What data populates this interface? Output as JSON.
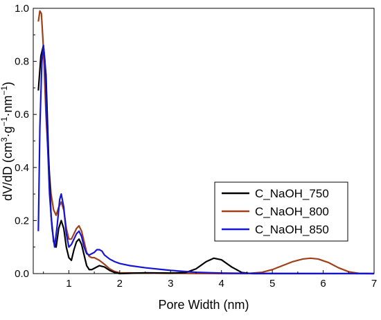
{
  "chart_data": {
    "type": "line",
    "xlabel": "Pore Width (nm)",
    "ylabel_parts": [
      "dV/dD (cm",
      "3",
      "·g",
      "−1",
      "·nm",
      "−1",
      ")"
    ],
    "xlim": [
      0.3,
      7
    ],
    "ylim": [
      0,
      1.0
    ],
    "xticks": [
      1,
      2,
      3,
      4,
      5,
      6,
      7
    ],
    "xtick_labels": [
      "1",
      "2",
      "3",
      "4",
      "5",
      "6",
      "7"
    ],
    "yticks": [
      0,
      0.2,
      0.4,
      0.6,
      0.8,
      1.0
    ],
    "ytick_labels": [
      "0.0",
      "0.2",
      "0.4",
      "0.6",
      "0.8",
      "1.0"
    ],
    "legend_position": "center-right",
    "series": [
      {
        "name": "C_NaOH_750",
        "color": "#000000",
        "points": [
          [
            0.4,
            0.69
          ],
          [
            0.45,
            0.82
          ],
          [
            0.5,
            0.86
          ],
          [
            0.55,
            0.75
          ],
          [
            0.6,
            0.45
          ],
          [
            0.65,
            0.22
          ],
          [
            0.7,
            0.12
          ],
          [
            0.75,
            0.1
          ],
          [
            0.8,
            0.17
          ],
          [
            0.85,
            0.2
          ],
          [
            0.9,
            0.17
          ],
          [
            0.95,
            0.1
          ],
          [
            1.0,
            0.06
          ],
          [
            1.05,
            0.05
          ],
          [
            1.1,
            0.09
          ],
          [
            1.15,
            0.12
          ],
          [
            1.2,
            0.13
          ],
          [
            1.25,
            0.11
          ],
          [
            1.3,
            0.07
          ],
          [
            1.35,
            0.03
          ],
          [
            1.4,
            0.015
          ],
          [
            1.45,
            0.015
          ],
          [
            1.5,
            0.02
          ],
          [
            1.6,
            0.03
          ],
          [
            1.7,
            0.025
          ],
          [
            1.8,
            0.012
          ],
          [
            1.9,
            0.004
          ],
          [
            2.0,
            0.0
          ],
          [
            2.5,
            0.003
          ],
          [
            3.0,
            0.002
          ],
          [
            3.3,
            0.004
          ],
          [
            3.5,
            0.018
          ],
          [
            3.7,
            0.045
          ],
          [
            3.85,
            0.058
          ],
          [
            4.0,
            0.052
          ],
          [
            4.2,
            0.025
          ],
          [
            4.4,
            0.004
          ],
          [
            4.6,
            0.0
          ],
          [
            5.0,
            0.0
          ],
          [
            7.0,
            0.0
          ]
        ]
      },
      {
        "name": "C_NaOH_800",
        "color": "#a0401a",
        "points": [
          [
            0.4,
            0.95
          ],
          [
            0.43,
            0.99
          ],
          [
            0.46,
            0.98
          ],
          [
            0.5,
            0.85
          ],
          [
            0.55,
            0.6
          ],
          [
            0.6,
            0.42
          ],
          [
            0.65,
            0.3
          ],
          [
            0.7,
            0.24
          ],
          [
            0.75,
            0.22
          ],
          [
            0.8,
            0.25
          ],
          [
            0.85,
            0.27
          ],
          [
            0.9,
            0.24
          ],
          [
            0.95,
            0.17
          ],
          [
            1.0,
            0.13
          ],
          [
            1.05,
            0.13
          ],
          [
            1.1,
            0.15
          ],
          [
            1.15,
            0.17
          ],
          [
            1.2,
            0.18
          ],
          [
            1.25,
            0.16
          ],
          [
            1.3,
            0.12
          ],
          [
            1.35,
            0.08
          ],
          [
            1.4,
            0.065
          ],
          [
            1.45,
            0.06
          ],
          [
            1.5,
            0.06
          ],
          [
            1.6,
            0.05
          ],
          [
            1.7,
            0.035
          ],
          [
            1.8,
            0.018
          ],
          [
            1.9,
            0.008
          ],
          [
            2.0,
            0.003
          ],
          [
            2.5,
            0.002
          ],
          [
            3.0,
            0.001
          ],
          [
            4.0,
            0.0
          ],
          [
            4.5,
            0.0
          ],
          [
            4.8,
            0.005
          ],
          [
            5.0,
            0.015
          ],
          [
            5.2,
            0.03
          ],
          [
            5.4,
            0.045
          ],
          [
            5.6,
            0.055
          ],
          [
            5.75,
            0.058
          ],
          [
            5.9,
            0.055
          ],
          [
            6.1,
            0.042
          ],
          [
            6.3,
            0.022
          ],
          [
            6.5,
            0.007
          ],
          [
            6.7,
            0.001
          ],
          [
            7.0,
            0.0
          ]
        ]
      },
      {
        "name": "C_NaOH_850",
        "color": "#1515d4",
        "points": [
          [
            0.4,
            0.16
          ],
          [
            0.43,
            0.55
          ],
          [
            0.47,
            0.8
          ],
          [
            0.5,
            0.86
          ],
          [
            0.53,
            0.8
          ],
          [
            0.57,
            0.55
          ],
          [
            0.62,
            0.3
          ],
          [
            0.67,
            0.17
          ],
          [
            0.72,
            0.1
          ],
          [
            0.77,
            0.18
          ],
          [
            0.82,
            0.28
          ],
          [
            0.85,
            0.3
          ],
          [
            0.9,
            0.25
          ],
          [
            0.95,
            0.15
          ],
          [
            1.0,
            0.1
          ],
          [
            1.05,
            0.11
          ],
          [
            1.1,
            0.13
          ],
          [
            1.15,
            0.15
          ],
          [
            1.2,
            0.16
          ],
          [
            1.25,
            0.14
          ],
          [
            1.3,
            0.1
          ],
          [
            1.35,
            0.075
          ],
          [
            1.4,
            0.07
          ],
          [
            1.5,
            0.08
          ],
          [
            1.55,
            0.09
          ],
          [
            1.6,
            0.09
          ],
          [
            1.65,
            0.085
          ],
          [
            1.7,
            0.07
          ],
          [
            1.8,
            0.055
          ],
          [
            1.9,
            0.045
          ],
          [
            2.0,
            0.038
          ],
          [
            2.2,
            0.03
          ],
          [
            2.5,
            0.022
          ],
          [
            3.0,
            0.012
          ],
          [
            3.5,
            0.005
          ],
          [
            4.0,
            0.002
          ],
          [
            4.5,
            0.001
          ],
          [
            7.0,
            0.0
          ]
        ]
      }
    ]
  }
}
